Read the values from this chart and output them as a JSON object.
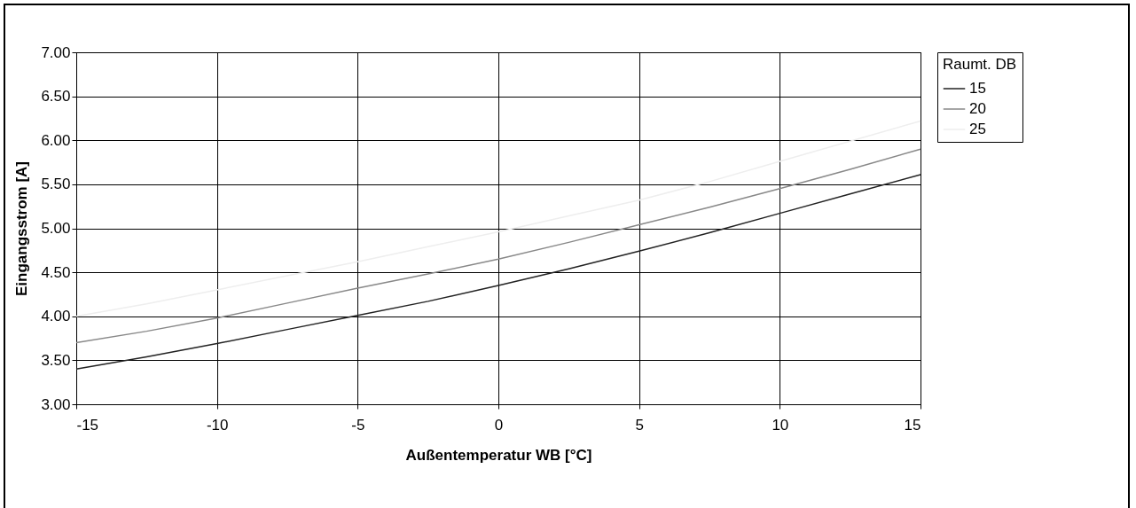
{
  "chart_data": {
    "type": "line",
    "xlabel": "Außentemperatur WB [°C]",
    "ylabel": "Eingangsstrom [A]",
    "legend_title": "Raumt. DB",
    "legend": "right",
    "grid": true,
    "marker": "none",
    "line_style": "solid",
    "x": [
      -15,
      -12.5,
      -10,
      -7.5,
      -5,
      -2.5,
      0,
      2.5,
      5,
      7.5,
      10,
      12.5,
      15
    ],
    "xlim": [
      -15,
      15
    ],
    "xticks": [
      -15,
      -10,
      -5,
      0,
      5,
      10,
      15
    ],
    "ylim": [
      3,
      7
    ],
    "yticks": [
      {
        "value": 3,
        "label": "3.00"
      },
      {
        "value": 3.5,
        "label": "3.50"
      },
      {
        "value": 4,
        "label": "4.00"
      },
      {
        "value": 4.5,
        "label": "4.50"
      },
      {
        "value": 5,
        "label": "5.00"
      },
      {
        "value": 5.5,
        "label": "5.50"
      },
      {
        "value": 6,
        "label": "6.00"
      },
      {
        "value": 6.5,
        "label": "6.50"
      },
      {
        "value": 7,
        "label": "7.00"
      }
    ],
    "series": [
      {
        "name": "15",
        "color": "#222222",
        "values": [
          3.4,
          3.54,
          3.69,
          3.85,
          4.01,
          4.17,
          4.35,
          4.54,
          4.74,
          4.95,
          5.17,
          5.39,
          5.61
        ]
      },
      {
        "name": "20",
        "color": "#888888",
        "values": [
          3.7,
          3.83,
          3.98,
          4.15,
          4.32,
          4.48,
          4.65,
          4.84,
          5.04,
          5.24,
          5.45,
          5.67,
          5.9
        ]
      },
      {
        "name": "25",
        "color": "#eeeeee",
        "values": [
          4.0,
          4.14,
          4.3,
          4.46,
          4.62,
          4.79,
          4.96,
          5.14,
          5.32,
          5.53,
          5.76,
          5.99,
          6.22
        ]
      }
    ]
  }
}
